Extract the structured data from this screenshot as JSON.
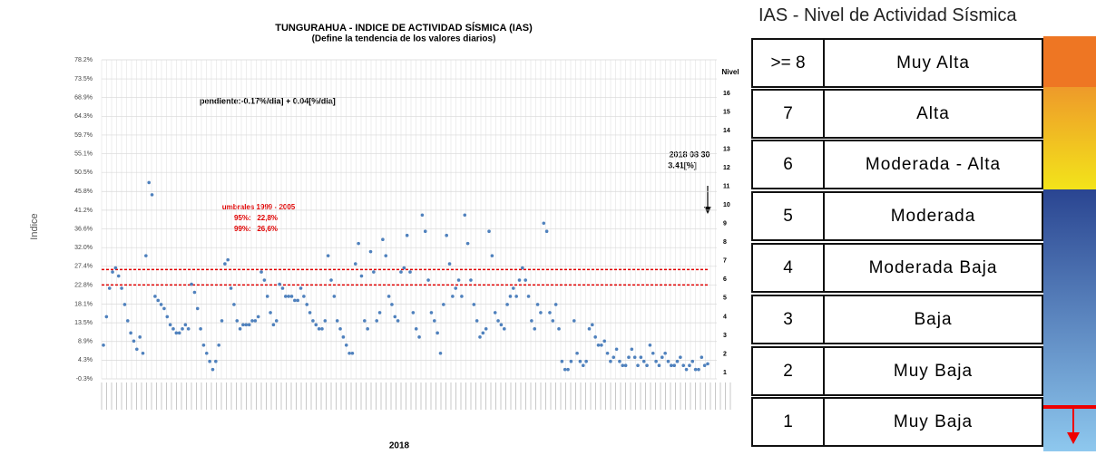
{
  "chart_data": {
    "type": "scatter",
    "title": "TUNGURAHUA - INDICE DE ACTIVIDAD SÍSMICA (IAS)",
    "subtitle": "(Define la tendencia de los valores diarios)",
    "y_label": "Indice",
    "x_label": "2018",
    "y2_label": "Nivel",
    "color": "#4f81bd",
    "values": [
      8,
      15,
      22,
      26,
      27,
      25,
      22,
      18,
      14,
      11,
      9,
      7,
      10,
      6,
      30,
      48,
      45,
      20,
      19,
      18,
      17,
      15,
      13,
      12,
      11,
      11,
      12,
      13,
      12,
      23,
      21,
      17,
      12,
      8,
      6,
      4,
      2,
      4,
      8,
      14,
      28,
      29,
      22,
      18,
      14,
      12,
      13,
      13,
      13,
      14,
      14,
      15,
      26,
      24,
      20,
      16,
      13,
      14,
      23,
      22,
      20,
      20,
      20,
      19,
      19,
      22,
      20,
      18,
      16,
      14,
      13,
      12,
      12,
      14,
      30,
      24,
      20,
      14,
      12,
      10,
      8,
      6,
      6,
      28,
      33,
      25,
      14,
      12,
      31,
      26,
      14,
      16,
      34,
      30,
      20,
      18,
      15,
      14,
      26,
      27,
      35,
      26,
      16,
      12,
      10,
      40,
      36,
      24,
      16,
      14,
      11,
      6,
      18,
      35,
      28,
      20,
      22,
      24,
      20,
      40,
      33,
      24,
      18,
      14,
      10,
      11,
      12,
      36,
      30,
      16,
      14,
      13,
      12,
      18,
      20,
      22,
      20,
      24,
      27,
      24,
      20,
      14,
      12,
      18,
      16,
      38,
      36,
      16,
      14,
      18,
      12,
      4,
      2,
      2,
      4,
      14,
      6,
      4,
      3,
      4,
      12,
      13,
      10,
      8,
      8,
      9,
      6,
      4,
      5,
      7,
      4,
      3,
      3,
      5,
      7,
      5,
      3,
      5,
      4,
      3,
      8,
      6,
      4,
      3,
      5,
      6,
      4,
      3,
      3,
      4,
      5,
      3,
      2,
      3,
      4,
      2,
      2,
      5,
      3,
      3.41
    ],
    "ylim": [
      -0.3,
      78.2
    ],
    "yticks": [
      {
        "value": -0.3,
        "label": "-0.3%"
      },
      {
        "value": 4.3,
        "label": "4.3%"
      },
      {
        "value": 8.9,
        "label": "8.9%"
      },
      {
        "value": 13.5,
        "label": "13.5%"
      },
      {
        "value": 18.1,
        "label": "18.1%"
      },
      {
        "value": 22.8,
        "label": "22.8%"
      },
      {
        "value": 27.4,
        "label": "27.4%"
      },
      {
        "value": 32.0,
        "label": "32.0%"
      },
      {
        "value": 36.6,
        "label": "36.6%"
      },
      {
        "value": 41.2,
        "label": "41.2%"
      },
      {
        "value": 45.8,
        "label": "45.8%"
      },
      {
        "value": 50.5,
        "label": "50.5%"
      },
      {
        "value": 55.1,
        "label": "55.1%"
      },
      {
        "value": 59.7,
        "label": "59.7%"
      },
      {
        "value": 64.3,
        "label": "64.3%"
      },
      {
        "value": 68.9,
        "label": "68.9%"
      },
      {
        "value": 73.5,
        "label": "73.5%"
      },
      {
        "value": 78.2,
        "label": "78.2%"
      }
    ],
    "y2lim": [
      0.66,
      17.8
    ],
    "y2ticks": [
      1,
      2,
      3,
      4,
      5,
      6,
      7,
      8,
      9,
      10,
      11,
      12,
      13,
      14,
      15,
      16
    ],
    "grid": true,
    "reference_lines": [
      {
        "value": 22.8,
        "label": "95%:   22,8%",
        "color": "#e00000"
      },
      {
        "value": 26.6,
        "label": "99%:   26,6%",
        "color": "#e00000"
      }
    ],
    "reference_title": "umbrales 1999 - 2005",
    "annotations": [
      "pendiente:-0.17%/dia] +  0.04[%/dia]",
      "2018 08 30",
      "3.41[%]"
    ]
  },
  "table": {
    "title": "IAS - Nivel de Actividad Sísmica",
    "rows": [
      [
        ">= 8",
        "Muy Alta"
      ],
      [
        "7",
        "Alta"
      ],
      [
        "6",
        "Moderada - Alta"
      ],
      [
        "5",
        "Moderada"
      ],
      [
        "4",
        "Moderada Baja"
      ],
      [
        "3",
        "Baja"
      ],
      [
        "2",
        "Muy Baja"
      ],
      [
        "1",
        "Muy Baja"
      ]
    ]
  }
}
